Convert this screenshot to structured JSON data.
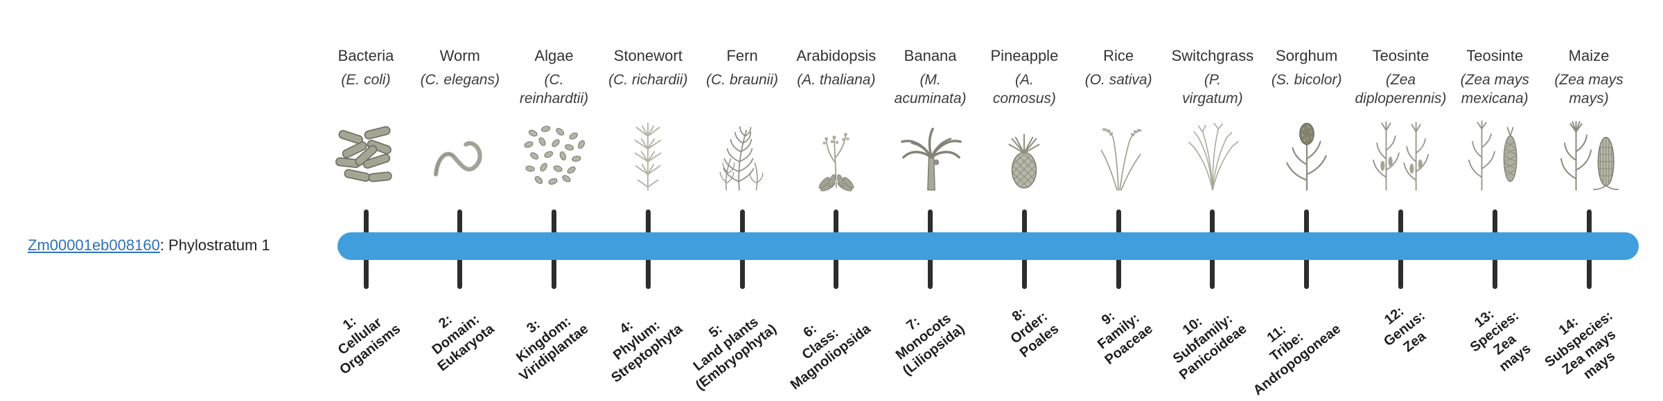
{
  "page": {
    "background": "#ffffff"
  },
  "gene": {
    "id_link": "Zm00001eb008160",
    "suffix": ": Phylostratum 1",
    "link_color": "#2d72b8"
  },
  "timeline": {
    "bar_color": "#3f9edb",
    "tick_color": "#2d2d2d"
  },
  "columns": [
    {
      "common_name": "Bacteria",
      "scientific_name": "(E. coli)",
      "icon": "bacteria-icon",
      "stratum_label": "1:\nCellular\nOrganisms"
    },
    {
      "common_name": "Worm",
      "scientific_name": "(C. elegans)",
      "icon": "worm-icon",
      "stratum_label": "2:\nDomain:\nEukaryota"
    },
    {
      "common_name": "Algae",
      "scientific_name": "(C.\nreinhardtii)",
      "icon": "algae-icon",
      "stratum_label": "3:\nKingdom:\nViridiplantae"
    },
    {
      "common_name": "Stonewort",
      "scientific_name": "(C. richardii)",
      "icon": "stonewort-icon",
      "stratum_label": "4:\nPhylum:\nStreptophyta"
    },
    {
      "common_name": "Fern",
      "scientific_name": "(C. braunii)",
      "icon": "fern-icon",
      "stratum_label": "5:\nLand plants\n(Embryophyta)"
    },
    {
      "common_name": "Arabidopsis",
      "scientific_name": "(A. thaliana)",
      "icon": "arabidopsis-icon",
      "stratum_label": "6:\nClass:\nMagnoliopsida"
    },
    {
      "common_name": "Banana",
      "scientific_name": "(M.\nacuminata)",
      "icon": "banana-icon",
      "stratum_label": "7:\nMonocots\n(Liliopsida)"
    },
    {
      "common_name": "Pineapple",
      "scientific_name": "(A.\ncomosus)",
      "icon": "pineapple-icon",
      "stratum_label": "8:\nOrder:\nPoales"
    },
    {
      "common_name": "Rice",
      "scientific_name": "(O. sativa)",
      "icon": "rice-icon",
      "stratum_label": "9:\nFamily:\nPoaceae"
    },
    {
      "common_name": "Switchgrass",
      "scientific_name": "(P.\nvirgatum)",
      "icon": "switchgrass-icon",
      "stratum_label": "10:\nSubfamily:\nPanicoideae"
    },
    {
      "common_name": "Sorghum",
      "scientific_name": "(S. bicolor)",
      "icon": "sorghum-icon",
      "stratum_label": "11:\nTribe:\nAndropogoneae"
    },
    {
      "common_name": "Teosinte",
      "scientific_name": "(Zea\ndiploperennis)",
      "icon": "teosinte-diploperennis-icon",
      "stratum_label": "12:\nGenus:\nZea"
    },
    {
      "common_name": "Teosinte",
      "scientific_name": "(Zea mays\nmexicana)",
      "icon": "teosinte-mexicana-icon",
      "stratum_label": "13:\nSpecies:\nZea\nmays"
    },
    {
      "common_name": "Maize",
      "scientific_name": "(Zea mays\nmays)",
      "icon": "maize-icon",
      "stratum_label": "14:\nSubspecies:\nZea mays\nmays"
    }
  ]
}
